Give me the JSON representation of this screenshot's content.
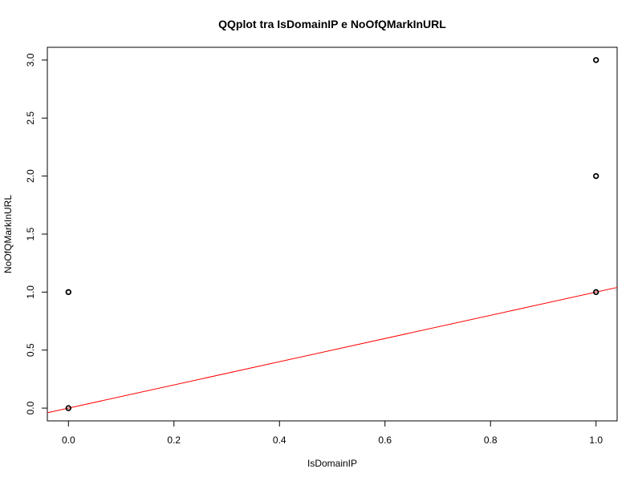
{
  "chart_data": {
    "type": "scatter",
    "title": "QQplot tra IsDomainIP e NoOfQMarkInURL",
    "xlabel": "IsDomainIP",
    "ylabel": "NoOfQMarkInURL",
    "xlim": [
      -0.04,
      1.04
    ],
    "ylim": [
      -0.11,
      3.11
    ],
    "x_ticks": [
      0.0,
      0.2,
      0.4,
      0.6,
      0.8,
      1.0
    ],
    "x_tick_labels": [
      "0.0",
      "0.2",
      "0.4",
      "0.6",
      "0.8",
      "1.0"
    ],
    "y_ticks": [
      0.0,
      0.5,
      1.0,
      1.5,
      2.0,
      2.5,
      3.0
    ],
    "y_tick_labels": [
      "0.0",
      "0.5",
      "1.0",
      "1.5",
      "2.0",
      "2.5",
      "3.0"
    ],
    "points": [
      {
        "x": 0,
        "y": 0
      },
      {
        "x": 0,
        "y": 1
      },
      {
        "x": 1,
        "y": 1
      },
      {
        "x": 1,
        "y": 2
      },
      {
        "x": 1,
        "y": 3
      }
    ],
    "reference_line": {
      "intercept": 0,
      "slope": 1,
      "color": "#ff0000"
    },
    "point_color": "#000000",
    "grid": false,
    "legend": "none"
  }
}
